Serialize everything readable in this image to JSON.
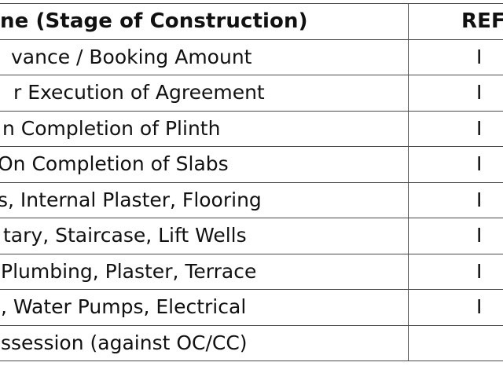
{
  "table": {
    "headers": {
      "stage": "ne (Stage of Construction)",
      "ref": "REF"
    },
    "rows": [
      {
        "stage": "vance / Booking Amount",
        "ref": "I"
      },
      {
        "stage": "r Execution of Agreement",
        "ref": "I"
      },
      {
        "stage": "n Completion of Plinth",
        "ref": "I"
      },
      {
        "stage": "On Completion of Slabs",
        "ref": "I"
      },
      {
        "stage": "s, Internal Plaster, Flooring",
        "ref": "I"
      },
      {
        "stage": "tary, Staircase, Lift Wells",
        "ref": "I"
      },
      {
        "stage": "Plumbing, Plaster, Terrace",
        "ref": "I"
      },
      {
        "stage": ", Water Pumps, Electrical",
        "ref": "I"
      },
      {
        "stage": "ssession (against OC/CC)",
        "ref": ""
      }
    ]
  }
}
